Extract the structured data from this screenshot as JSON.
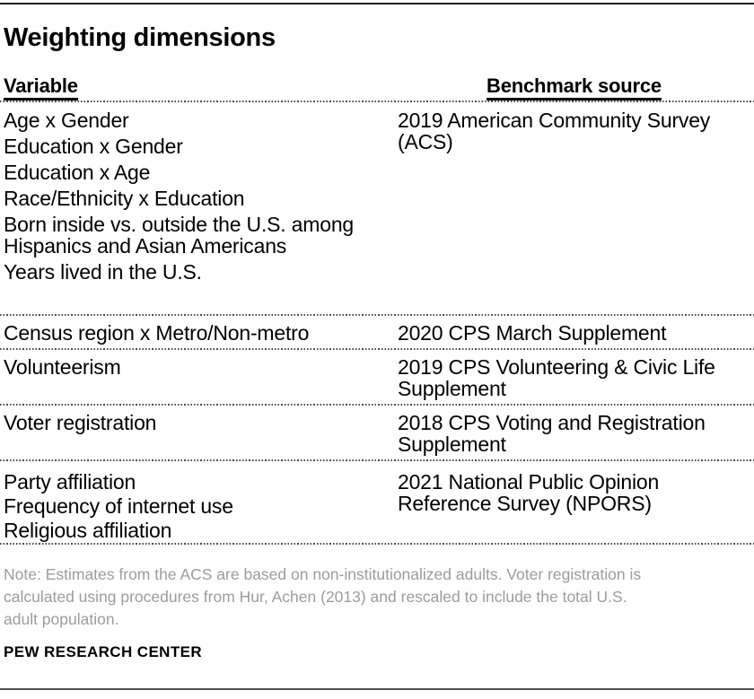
{
  "title": "Weighting dimensions",
  "table": {
    "headers": {
      "variable": "Variable",
      "source": "Benchmark source"
    },
    "rows": [
      {
        "variables": [
          "Age x Gender",
          "Education x Gender",
          "Education x Age",
          "Race/Ethnicity x Education",
          "Born inside vs. outside the U.S. among\nHispanics and Asian Americans",
          "Years lived in the U.S."
        ],
        "source": "2019 American Community Survey\n(ACS)"
      },
      {
        "variables": [
          "Census region x Metro/Non-metro"
        ],
        "source": "2020 CPS March Supplement"
      },
      {
        "variables": [
          "Volunteerism"
        ],
        "source": "2019 CPS Volunteering & Civic Life\nSupplement"
      },
      {
        "variables": [
          "Voter registration"
        ],
        "source": "2018 CPS Voting and Registration\nSupplement"
      },
      {
        "variables": [
          "Party affiliation",
          "Frequency of internet use",
          "Religious affiliation"
        ],
        "source": "2021 National Public Opinion\nReference Survey (NPORS)"
      }
    ]
  },
  "note": "Note: Estimates from the ACS are based on non-institutionalized adults. Voter registration is\ncalculated using procedures from Hur, Achen (2013) and rescaled to include the total U.S.\nadult population.",
  "footer": "PEW RESEARCH CENTER",
  "colors": {
    "text_black": "#000000",
    "note_gray": "#9c9c9c",
    "top_rule": "#1f1f1f",
    "bottom_rule": "#4f4f4f",
    "dotted_separator": "#4a4a4a"
  },
  "chart_data": {
    "type": "table",
    "title": "Weighting dimensions",
    "columns": [
      "Variable",
      "Benchmark source"
    ],
    "rows": [
      {
        "variables": [
          "Age x Gender",
          "Education x Gender",
          "Education x Age",
          "Race/Ethnicity x Education",
          "Born inside vs. outside the U.S. among Hispanics and Asian Americans",
          "Years lived in the U.S."
        ],
        "benchmark_source": "2019 American Community Survey (ACS)"
      },
      {
        "variables": [
          "Census region x Metro/Non-metro"
        ],
        "benchmark_source": "2020 CPS March Supplement"
      },
      {
        "variables": [
          "Volunteerism"
        ],
        "benchmark_source": "2019 CPS Volunteering & Civic Life Supplement"
      },
      {
        "variables": [
          "Voter registration"
        ],
        "benchmark_source": "2018 CPS Voting and Registration Supplement"
      },
      {
        "variables": [
          "Party affiliation",
          "Frequency of internet use",
          "Religious affiliation"
        ],
        "benchmark_source": "2021 National Public Opinion Reference Survey (NPORS)"
      }
    ],
    "note": "Note: Estimates from the ACS are based on non-institutionalized adults. Voter registration is calculated using procedures from Hur, Achen (2013) and rescaled to include the total U.S. adult population.",
    "source": "PEW RESEARCH CENTER",
    "layout": {
      "grid": "dotted-row-separators",
      "header_underline": "solid-black"
    }
  }
}
